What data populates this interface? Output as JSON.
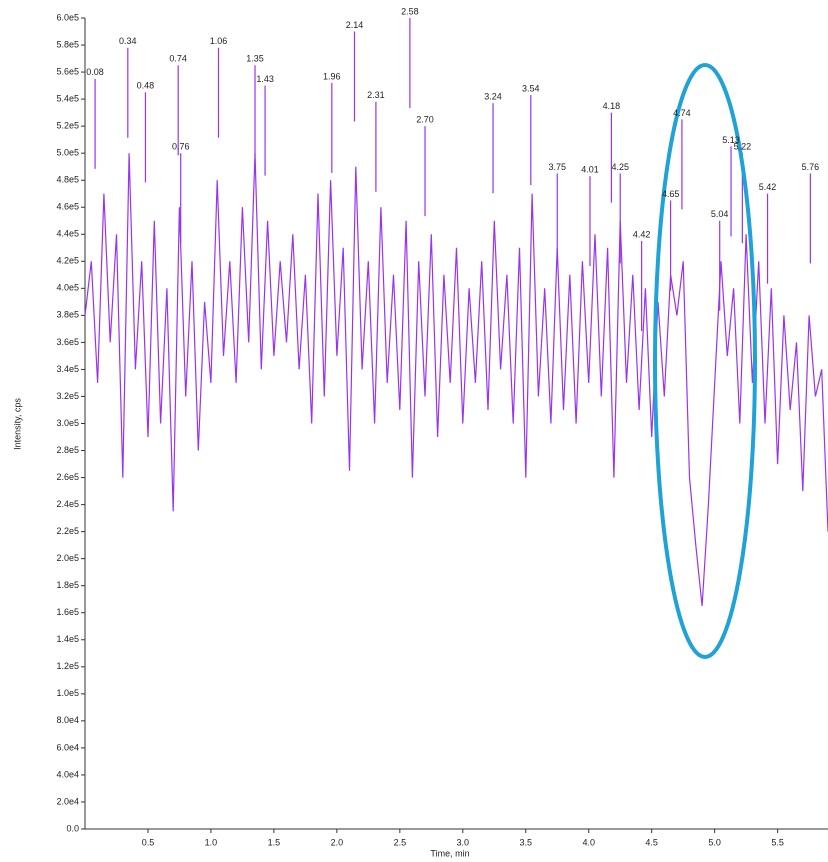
{
  "chart_data": {
    "type": "line",
    "xlabel": "Time, min",
    "ylabel": "Intensity, cps",
    "xlim": [
      0,
      5.9
    ],
    "ylim": [
      0,
      600000
    ],
    "xticks": [
      0.5,
      {
        "value": 1,
        "label": "1.0"
      },
      1.5,
      {
        "value": 2,
        "label": "2.0"
      },
      2.5,
      {
        "value": 3,
        "label": "3.0"
      },
      3.5,
      {
        "value": 4,
        "label": "4.0"
      },
      4.5,
      {
        "value": 5,
        "label": "5.0"
      },
      5.5
    ],
    "yticks": [
      {
        "value": 0,
        "label": "0.0"
      },
      {
        "value": 20000,
        "label": "2.0e4"
      },
      {
        "value": 40000,
        "label": "4.0e4"
      },
      {
        "value": 60000,
        "label": "6.0e4"
      },
      {
        "value": 80000,
        "label": "8.0e4"
      },
      {
        "value": 100000,
        "label": "1.0e5"
      },
      {
        "value": 120000,
        "label": "1.2e5"
      },
      {
        "value": 140000,
        "label": "1.4e5"
      },
      {
        "value": 160000,
        "label": "1.6e5"
      },
      {
        "value": 180000,
        "label": "1.8e5"
      },
      {
        "value": 200000,
        "label": "2.0e5"
      },
      {
        "value": 220000,
        "label": "2.2e5"
      },
      {
        "value": 240000,
        "label": "2.4e5"
      },
      {
        "value": 260000,
        "label": "2.6e5"
      },
      {
        "value": 280000,
        "label": "2.8e5"
      },
      {
        "value": 300000,
        "label": "3.0e5"
      },
      {
        "value": 320000,
        "label": "3.2e5"
      },
      {
        "value": 340000,
        "label": "3.4e5"
      },
      {
        "value": 360000,
        "label": "3.6e5"
      },
      {
        "value": 380000,
        "label": "3.8e5"
      },
      {
        "value": 400000,
        "label": "4.0e5"
      },
      {
        "value": 420000,
        "label": "4.2e5"
      },
      {
        "value": 440000,
        "label": "4.4e5"
      },
      {
        "value": 460000,
        "label": "4.6e5"
      },
      {
        "value": 480000,
        "label": "4.8e5"
      },
      {
        "value": 500000,
        "label": "5.0e5"
      },
      {
        "value": 520000,
        "label": "5.2e5"
      },
      {
        "value": 540000,
        "label": "5.4e5"
      },
      {
        "value": 560000,
        "label": "5.6e5"
      },
      {
        "value": 580000,
        "label": "5.8e5"
      },
      {
        "value": 600000,
        "label": "6.0e5"
      }
    ],
    "color": "#9933ee",
    "x": [
      0,
      0.05,
      0.1,
      0.15,
      0.2,
      0.25,
      0.3,
      0.35,
      0.4,
      0.45,
      0.5,
      0.55,
      0.6,
      0.65,
      0.7,
      0.75,
      0.8,
      0.85,
      0.9,
      0.95,
      1,
      1.05,
      1.1,
      1.15,
      1.2,
      1.25,
      1.3,
      1.35,
      1.4,
      1.45,
      1.5,
      1.55,
      1.6,
      1.65,
      1.7,
      1.75,
      1.8,
      1.85,
      1.9,
      1.95,
      2,
      2.05,
      2.1,
      2.15,
      2.2,
      2.25,
      2.3,
      2.35,
      2.4,
      2.45,
      2.5,
      2.55,
      2.6,
      2.65,
      2.7,
      2.75,
      2.8,
      2.85,
      2.9,
      2.95,
      3,
      3.05,
      3.1,
      3.15,
      3.2,
      3.25,
      3.3,
      3.35,
      3.4,
      3.45,
      3.5,
      3.55,
      3.6,
      3.65,
      3.7,
      3.75,
      3.8,
      3.85,
      3.9,
      3.95,
      4,
      4.05,
      4.1,
      4.15,
      4.2,
      4.25,
      4.3,
      4.35,
      4.4,
      4.45,
      4.5,
      4.55,
      4.6,
      4.65,
      4.7,
      4.75,
      4.8,
      4.85,
      4.9,
      4.95,
      5,
      5.05,
      5.1,
      5.15,
      5.2,
      5.25,
      5.3,
      5.35,
      5.4,
      5.45,
      5.5,
      5.55,
      5.6,
      5.65,
      5.7,
      5.75,
      5.8,
      5.85,
      5.9
    ],
    "values": [
      380000,
      420000,
      330000,
      470000,
      360000,
      440000,
      260000,
      500000,
      340000,
      420000,
      290000,
      450000,
      300000,
      400000,
      235000,
      460000,
      320000,
      420000,
      280000,
      390000,
      330000,
      480000,
      350000,
      420000,
      330000,
      460000,
      360000,
      500000,
      340000,
      450000,
      350000,
      420000,
      360000,
      440000,
      340000,
      410000,
      300000,
      470000,
      320000,
      480000,
      350000,
      430000,
      265000,
      490000,
      340000,
      420000,
      300000,
      460000,
      330000,
      410000,
      310000,
      450000,
      260000,
      420000,
      320000,
      440000,
      290000,
      410000,
      330000,
      430000,
      300000,
      400000,
      330000,
      420000,
      310000,
      450000,
      340000,
      410000,
      300000,
      430000,
      260000,
      470000,
      320000,
      400000,
      300000,
      430000,
      310000,
      410000,
      300000,
      420000,
      330000,
      440000,
      320000,
      430000,
      260000,
      450000,
      330000,
      410000,
      310000,
      400000,
      290000,
      390000,
      320000,
      410000,
      380000,
      420000,
      260000,
      210000,
      165000,
      240000,
      330000,
      420000,
      350000,
      400000,
      300000,
      440000,
      330000,
      420000,
      300000,
      400000,
      270000,
      380000,
      310000,
      360000,
      250000,
      380000,
      320000,
      340000,
      220000
    ],
    "peaks": {
      "labels": [
        "0.08",
        "0.34",
        "0.48",
        "0.74",
        "0.76",
        "1.06",
        "1.35",
        "1.43",
        "1.96",
        "2.14",
        "2.31",
        "2.58",
        "2.70",
        "3.24",
        "3.54",
        "3.75",
        "4.01",
        "4.18",
        "4.25",
        "4.42",
        "4.65",
        "4.74",
        "5.04",
        "5.13",
        "5.22",
        "5.42",
        "5.76"
      ],
      "x": [
        0.08,
        0.34,
        0.48,
        0.74,
        0.76,
        1.06,
        1.35,
        1.43,
        1.96,
        2.14,
        2.31,
        2.58,
        2.7,
        3.24,
        3.54,
        3.75,
        4.01,
        4.18,
        4.25,
        4.42,
        4.65,
        4.74,
        5.04,
        5.13,
        5.22,
        5.42,
        5.76
      ],
      "y": [
        555000,
        578000,
        545000,
        565000,
        500000,
        578000,
        565000,
        550000,
        552000,
        590000,
        538000,
        600000,
        520000,
        537000,
        543000,
        485000,
        483000,
        530000,
        485000,
        435000,
        465000,
        525000,
        450000,
        505000,
        500000,
        470000,
        485000
      ]
    }
  }
}
